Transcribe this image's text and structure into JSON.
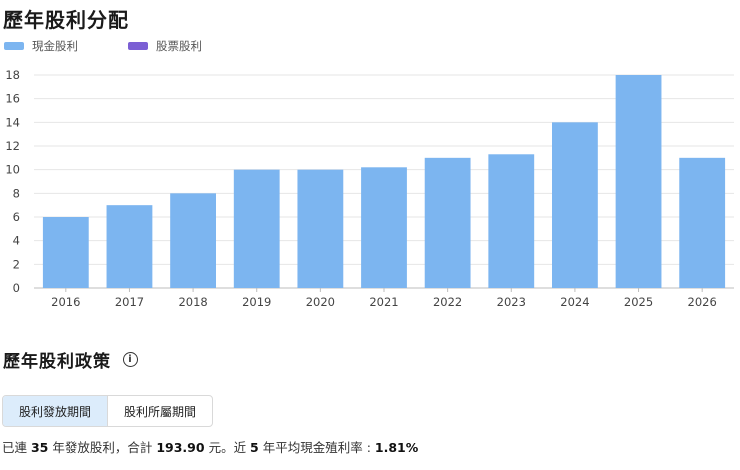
{
  "section1": {
    "title": "歷年股利分配"
  },
  "legend": [
    {
      "label": "現金股利",
      "color": "#7cb5f0"
    },
    {
      "label": "股票股利",
      "color": "#7b5fd4"
    }
  ],
  "chart_data": {
    "type": "bar",
    "categories": [
      "2016",
      "2017",
      "2018",
      "2019",
      "2020",
      "2021",
      "2022",
      "2023",
      "2024",
      "2025",
      "2026"
    ],
    "series": [
      {
        "name": "現金股利",
        "values": [
          6,
          7,
          8,
          10,
          10,
          10.2,
          11,
          11.3,
          14,
          18,
          11
        ],
        "color": "#7cb5f0"
      },
      {
        "name": "股票股利",
        "values": [
          0,
          0,
          0,
          0,
          0,
          0,
          0,
          0,
          0,
          0,
          0
        ],
        "color": "#7b5fd4"
      }
    ],
    "yticks": [
      0,
      2,
      4,
      6,
      8,
      10,
      12,
      14,
      16,
      18
    ],
    "ylim": [
      0,
      18
    ],
    "grid": true,
    "legend_position": "top-left",
    "stacked": true
  },
  "section2": {
    "title": "歷年股利政策",
    "info_icon": "info-icon"
  },
  "tabs": [
    {
      "label": "股利發放期間",
      "active": true
    },
    {
      "label": "股利所屬期間",
      "active": false
    }
  ],
  "summary": {
    "p1": "已連 ",
    "years": "35",
    "p2": " 年發放股利，合計 ",
    "total": "193.90",
    "p3": " 元。近 ",
    "recent": "5",
    "p4": " 年平均現金殖利率 : ",
    "yield": "1.81%"
  }
}
